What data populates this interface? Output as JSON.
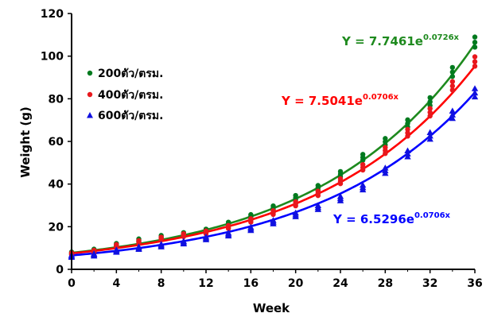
{
  "chart_data": {
    "type": "scatter",
    "title": "",
    "xlabel": "Week",
    "ylabel": "Weight (g)",
    "xlim": [
      0,
      36
    ],
    "ylim": [
      0,
      120
    ],
    "x_ticks": [
      "0",
      "4",
      "8",
      "12",
      "16",
      "20",
      "24",
      "28",
      "32",
      "36"
    ],
    "y_ticks": [
      "0",
      "20",
      "40",
      "60",
      "80",
      "100",
      "120"
    ],
    "grid": false,
    "legend_position": "upper-left",
    "series": [
      {
        "name": "200ตัว/ตรม.",
        "color": "#007a1e",
        "marker": "circle",
        "x": [
          0,
          2,
          4,
          6,
          8,
          10,
          12,
          14,
          16,
          18,
          20,
          22,
          24,
          26,
          28,
          30,
          32,
          34,
          36
        ],
        "y": [
          7.6,
          8.9,
          11.5,
          13.6,
          15.2,
          16.5,
          18.1,
          21.3,
          24.8,
          28.8,
          33.6,
          38.2,
          44.6,
          52.5,
          59.8,
          68.4,
          78.6,
          92.5,
          106.5
        ],
        "fit": {
          "a": 7.7461,
          "b": 0.0726,
          "color": "#1e8a1e"
        }
      },
      {
        "name": "400ตัว/ตรม.",
        "color": "#e8181d",
        "marker": "circle",
        "x": [
          0,
          2,
          4,
          6,
          8,
          10,
          12,
          14,
          16,
          18,
          20,
          22,
          24,
          26,
          28,
          30,
          32,
          34,
          36
        ],
        "y": [
          7.2,
          8.4,
          11.0,
          12.8,
          14.4,
          16.0,
          17.3,
          19.8,
          22.9,
          26.6,
          30.7,
          35.6,
          41.3,
          47.8,
          55.7,
          64.0,
          73.6,
          86.0,
          97.4
        ],
        "fit": {
          "a": 7.5041,
          "b": 0.0706,
          "color": "#ff0000"
        }
      },
      {
        "name": "600ตัว/ตรม.",
        "color": "#1010e0",
        "marker": "triangle",
        "x": [
          0,
          2,
          4,
          6,
          8,
          10,
          12,
          14,
          16,
          18,
          20,
          22,
          24,
          26,
          28,
          30,
          32,
          34,
          36
        ],
        "y": [
          6.2,
          6.8,
          8.6,
          10.0,
          11.2,
          12.6,
          14.6,
          16.4,
          19.0,
          22.2,
          25.6,
          29.0,
          33.2,
          38.4,
          46.3,
          54.2,
          62.6,
          72.5,
          82.8
        ],
        "fit": {
          "a": 6.5296,
          "b": 0.0706,
          "color": "#0000ff"
        }
      }
    ],
    "equations": [
      {
        "base": "Y = 7.7461e",
        "exp": "0.0726x",
        "color": "#1e8a1e"
      },
      {
        "base": "Y = 7.5041e",
        "exp": "0.0706x",
        "color": "#ff0000"
      },
      {
        "base": "Y = 6.5296e",
        "exp": "0.0706x",
        "color": "#0000ff"
      }
    ]
  }
}
